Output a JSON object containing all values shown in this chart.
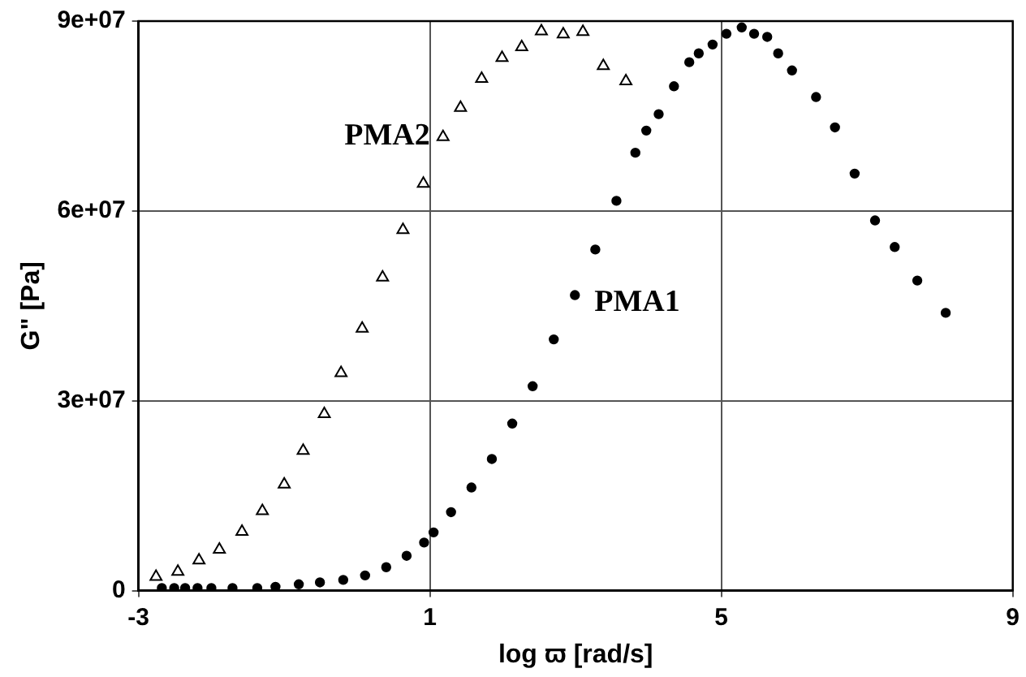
{
  "chart_data": {
    "type": "scatter",
    "xlabel": "log ϖ [rad/s]",
    "ylabel": "G\" [Pa]",
    "xlim": [
      -3,
      9
    ],
    "xticks": [
      -3,
      1,
      5,
      9
    ],
    "ylim": [
      0,
      90000000
    ],
    "yticks": [
      0,
      {
        "value": 30000000,
        "label": "3e+07"
      },
      {
        "value": 60000000,
        "label": "6e+07"
      },
      {
        "value": 90000000,
        "label": "9e+07"
      }
    ],
    "grid": true,
    "legend": false,
    "series": [
      {
        "name": "PMA1",
        "color": "#000000",
        "marker": "circle",
        "x": [
          -2.68,
          -2.51,
          -2.36,
          -2.19,
          -2.0,
          -1.71,
          -1.37,
          -1.12,
          -0.8,
          -0.51,
          -0.19,
          0.11,
          0.4,
          0.68,
          0.92,
          1.05,
          1.29,
          1.57,
          1.85,
          2.13,
          2.41,
          2.7,
          2.99,
          3.27,
          3.56,
          3.82,
          3.97,
          4.14,
          4.35,
          4.56,
          4.69,
          4.88,
          5.07,
          5.28,
          5.45,
          5.63,
          5.78,
          5.97,
          6.3,
          6.56,
          6.83,
          7.11,
          7.38,
          7.69,
          8.08
        ],
        "values": [
          400000,
          400000,
          400000,
          400000,
          400000,
          400000,
          400000,
          600000,
          1000000,
          1300000,
          1700000,
          2400000,
          3700000,
          5500000,
          7600000,
          9200000,
          12400000,
          16300000,
          20800000,
          26400000,
          32300000,
          39700000,
          46700000,
          53900000,
          61600000,
          69200000,
          72700000,
          75300000,
          79700000,
          83500000,
          84900000,
          86300000,
          88000000,
          89000000,
          88000000,
          87500000,
          84900000,
          82200000,
          78000000,
          73200000,
          65900000,
          58500000,
          54300000,
          49000000,
          43900000
        ]
      },
      {
        "name": "PMA2",
        "color": "#000000",
        "marker": "triangle",
        "x": [
          -2.76,
          -2.46,
          -2.17,
          -1.89,
          -1.58,
          -1.3,
          -1.0,
          -0.74,
          -0.45,
          -0.22,
          0.07,
          0.35,
          0.63,
          0.91,
          1.18,
          1.42,
          1.71,
          1.99,
          2.26,
          2.53,
          2.83,
          3.1,
          3.38,
          3.69
        ],
        "values": [
          2200000,
          3000000,
          4800000,
          6500000,
          9300000,
          12600000,
          16800000,
          22100000,
          27900000,
          34400000,
          41400000,
          49500000,
          57000000,
          64300000,
          71700000,
          76300000,
          80900000,
          84200000,
          85900000,
          88400000,
          87900000,
          88300000,
          82900000,
          80500000
        ]
      }
    ]
  }
}
